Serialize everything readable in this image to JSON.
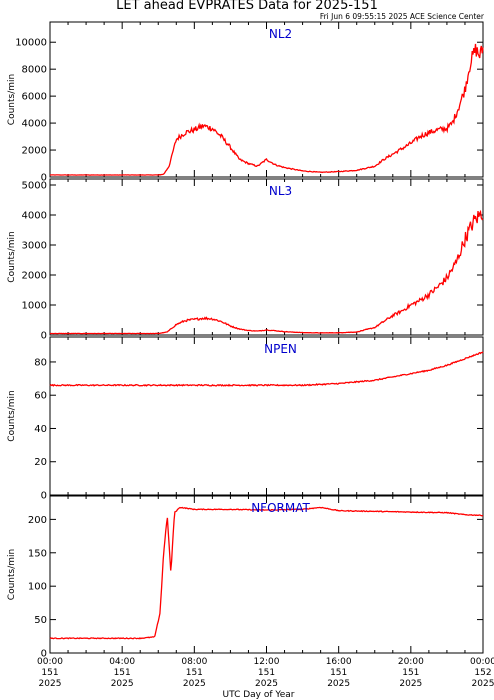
{
  "title": "LET ahead EVPRATES Data for 2025-151",
  "timestamp": "Fri Jun  6 09:55:15 2025 ACE Science Center",
  "xlabel": "UTC Day of Year",
  "colors": {
    "series": "#ff0000",
    "panel_label": "#0000cc",
    "axes": "#000000"
  },
  "x_ticks": [
    {
      "time": "00:00",
      "doy": "151",
      "year": "2025"
    },
    {
      "time": "04:00",
      "doy": "151",
      "year": "2025"
    },
    {
      "time": "08:00",
      "doy": "151",
      "year": "2025"
    },
    {
      "time": "12:00",
      "doy": "151",
      "year": "2025"
    },
    {
      "time": "16:00",
      "doy": "151",
      "year": "2025"
    },
    {
      "time": "20:00",
      "doy": "151",
      "year": "2025"
    },
    {
      "time": "00:00",
      "doy": "152",
      "year": "2025"
    }
  ],
  "chart_data": [
    {
      "type": "line",
      "title": "NL2",
      "ylabel": "Counts/min",
      "xlim": [
        0,
        24
      ],
      "ylim": [
        0,
        11500
      ],
      "yticks": [
        "0",
        "2000",
        "4000",
        "6000",
        "8000",
        "10000"
      ],
      "series": [
        {
          "x": [
            0,
            1,
            2,
            3,
            4,
            5,
            6,
            6.3,
            6.6,
            7,
            7.5,
            8,
            8.5,
            9,
            9.5,
            10,
            10.5,
            11,
            11.5,
            12,
            12.5,
            13,
            14,
            15,
            16,
            17,
            18,
            18.5,
            19,
            19.5,
            20,
            20.5,
            21,
            21.5,
            22,
            22.3,
            22.6,
            23,
            23.3,
            23.6,
            23.8,
            24
          ],
          "y": [
            150,
            150,
            150,
            150,
            150,
            150,
            150,
            200,
            800,
            2800,
            3300,
            3500,
            3800,
            3600,
            3000,
            2200,
            1300,
            1000,
            800,
            1300,
            900,
            700,
            450,
            350,
            400,
            500,
            800,
            1300,
            1700,
            2100,
            2500,
            3000,
            3300,
            3500,
            3600,
            4000,
            5000,
            6500,
            8500,
            9500,
            9000,
            9500
          ]
        }
      ]
    },
    {
      "type": "line",
      "title": "NL3",
      "ylabel": "Counts/min",
      "xlim": [
        0,
        24
      ],
      "ylim": [
        0,
        5200
      ],
      "yticks": [
        "0",
        "1000",
        "2000",
        "3000",
        "4000",
        "5000"
      ],
      "series": [
        {
          "x": [
            0,
            1,
            2,
            3,
            4,
            5,
            6,
            6.5,
            7,
            7.5,
            8,
            8.5,
            9,
            9.5,
            10,
            10.5,
            11,
            11.5,
            12,
            13,
            14,
            15,
            16,
            17,
            18,
            18.5,
            19,
            19.5,
            20,
            20.5,
            21,
            21.5,
            22,
            22.5,
            23,
            23.5,
            24
          ],
          "y": [
            50,
            50,
            50,
            50,
            50,
            50,
            50,
            100,
            350,
            480,
            520,
            560,
            540,
            450,
            300,
            200,
            150,
            130,
            170,
            110,
            80,
            70,
            75,
            100,
            250,
            450,
            650,
            800,
            1000,
            1150,
            1350,
            1600,
            1900,
            2400,
            3200,
            3800,
            4100
          ]
        }
      ]
    },
    {
      "type": "line",
      "title": "NPEN",
      "ylabel": "Counts/min",
      "xlim": [
        0,
        24
      ],
      "ylim": [
        0,
        95
      ],
      "yticks": [
        "0",
        "20",
        "40",
        "60",
        "80"
      ],
      "series": [
        {
          "x": [
            0,
            2,
            4,
            6,
            8,
            10,
            12,
            14,
            16,
            18,
            19,
            20,
            21,
            22,
            23,
            24
          ],
          "y": [
            66,
            66,
            66,
            66,
            66,
            66,
            66,
            66,
            67,
            69,
            71,
            73,
            75,
            78,
            82,
            86
          ]
        }
      ]
    },
    {
      "type": "line",
      "title": "NFORMAT",
      "ylabel": "Counts/min",
      "xlim": [
        0,
        24
      ],
      "ylim": [
        0,
        235
      ],
      "yticks": [
        "0",
        "50",
        "100",
        "150",
        "200"
      ],
      "series": [
        {
          "x": [
            0,
            1,
            2,
            3,
            4,
            5,
            5.8,
            6.1,
            6.3,
            6.5,
            6.7,
            6.9,
            7.2,
            8,
            10,
            12,
            14,
            15,
            16,
            18,
            20,
            22,
            23,
            24
          ],
          "y": [
            22,
            22,
            22,
            22,
            22,
            22,
            24,
            60,
            150,
            205,
            120,
            210,
            218,
            215,
            215,
            214,
            215,
            218,
            213,
            212,
            211,
            210,
            207,
            206
          ]
        }
      ]
    }
  ]
}
